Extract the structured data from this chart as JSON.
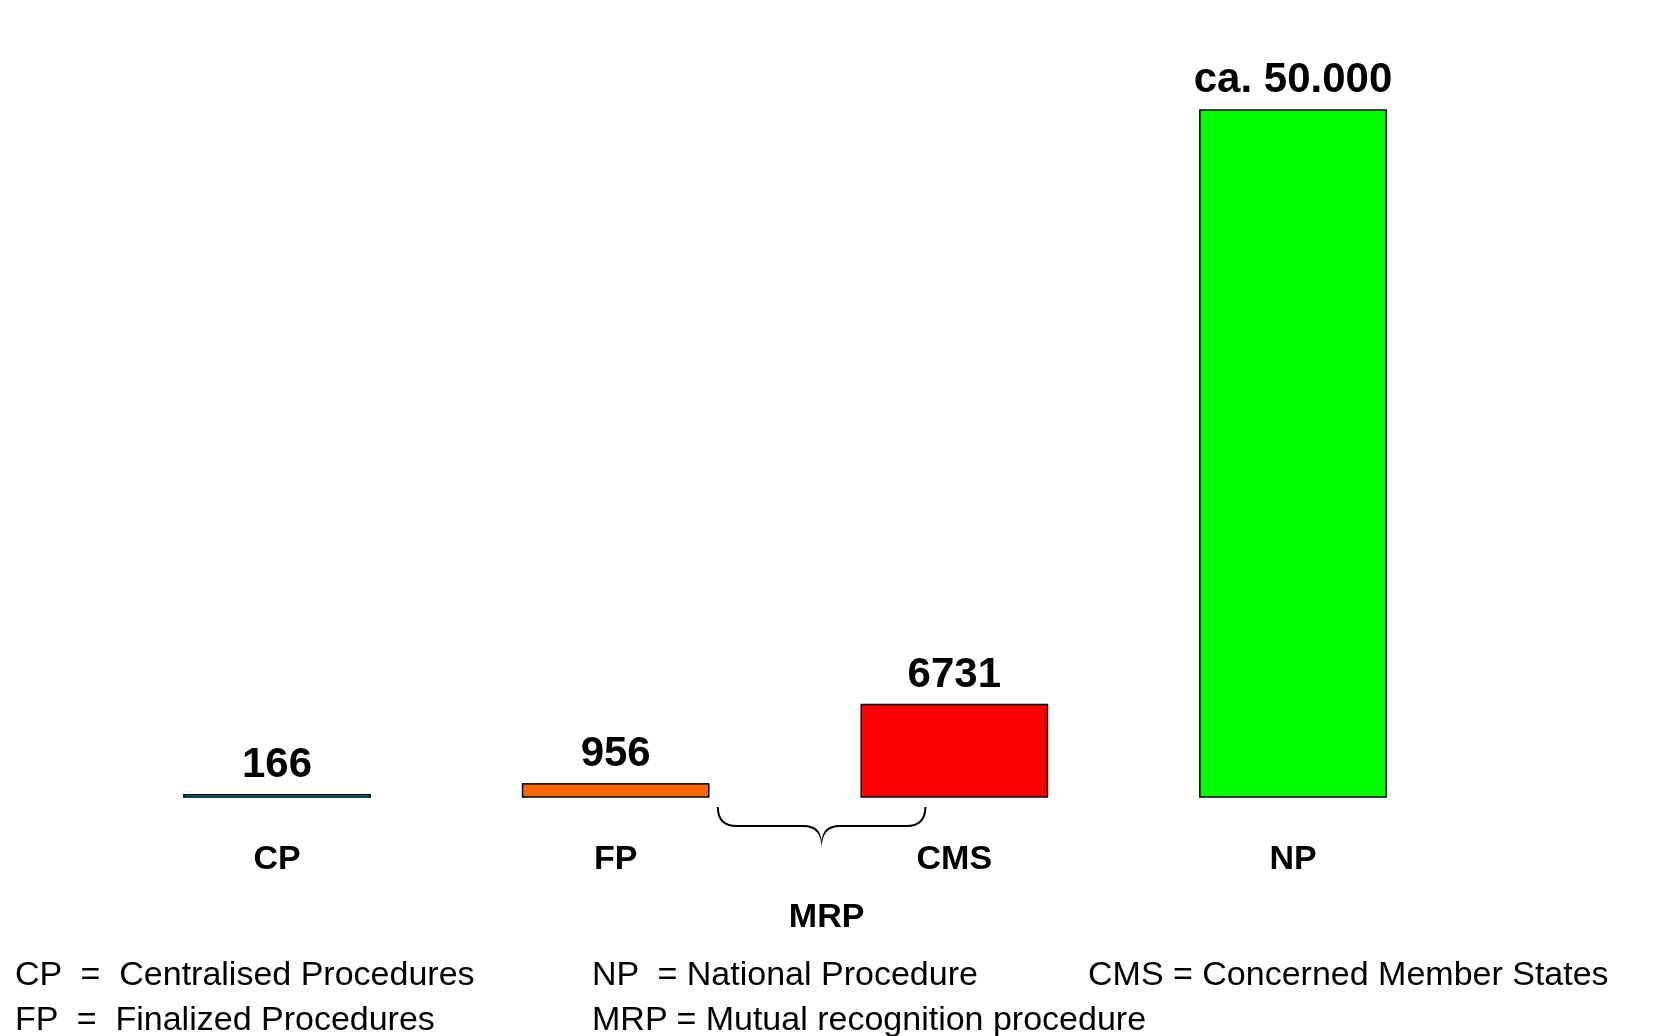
{
  "chart_data": {
    "type": "bar",
    "categories": [
      "CP",
      "FP",
      "CMS",
      "NP"
    ],
    "values": [
      166,
      956,
      6731,
      50000
    ],
    "colors": [
      "#00ccff",
      "#ff6600",
      "#ff0000",
      "#00ff00"
    ],
    "value_labels": [
      "166",
      "956",
      "6731",
      "ca. 50.000"
    ],
    "annotations": [
      "MRP",
      "CP  =  Centralised Procedures",
      "NP  = National Procedure",
      "CMS = Concerned Member States",
      "FP  =  Finalized Procedures",
      "MRP = Mutual recognition procedure"
    ],
    "data_labels": false
  }
}
